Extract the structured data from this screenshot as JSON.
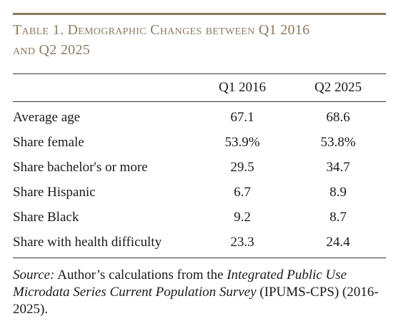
{
  "title_line1": "Table 1. Demographic Changes between Q1 2016",
  "title_line2": "and Q2 2025",
  "table": {
    "headers": [
      "",
      "Q1 2016",
      "Q2 2025"
    ],
    "rows": [
      {
        "label": "Average age",
        "q1_2016": "67.1",
        "q2_2025": "68.6"
      },
      {
        "label": "Share female",
        "q1_2016": "53.9%",
        "q2_2025": "53.8%"
      },
      {
        "label": "Share bachelor's or more",
        "q1_2016": "29.5",
        "q2_2025": "34.7"
      },
      {
        "label": "Share Hispanic",
        "q1_2016": "6.7",
        "q2_2025": "8.9"
      },
      {
        "label": "Share Black",
        "q1_2016": "9.2",
        "q2_2025": "8.7"
      },
      {
        "label": "Share with health difficulty",
        "q1_2016": "23.3",
        "q2_2025": "24.4"
      }
    ]
  },
  "source": {
    "label": "Source:",
    "text1": " Author’s calculations from the ",
    "italic": "Integrated Public Use Microdata Series Current Population Survey",
    "text2": " (IPUMS-CPS) (2016-2025)."
  },
  "colors": {
    "accent": "#8c7a60",
    "rule": "#333333",
    "text": "#1a1a1a"
  }
}
